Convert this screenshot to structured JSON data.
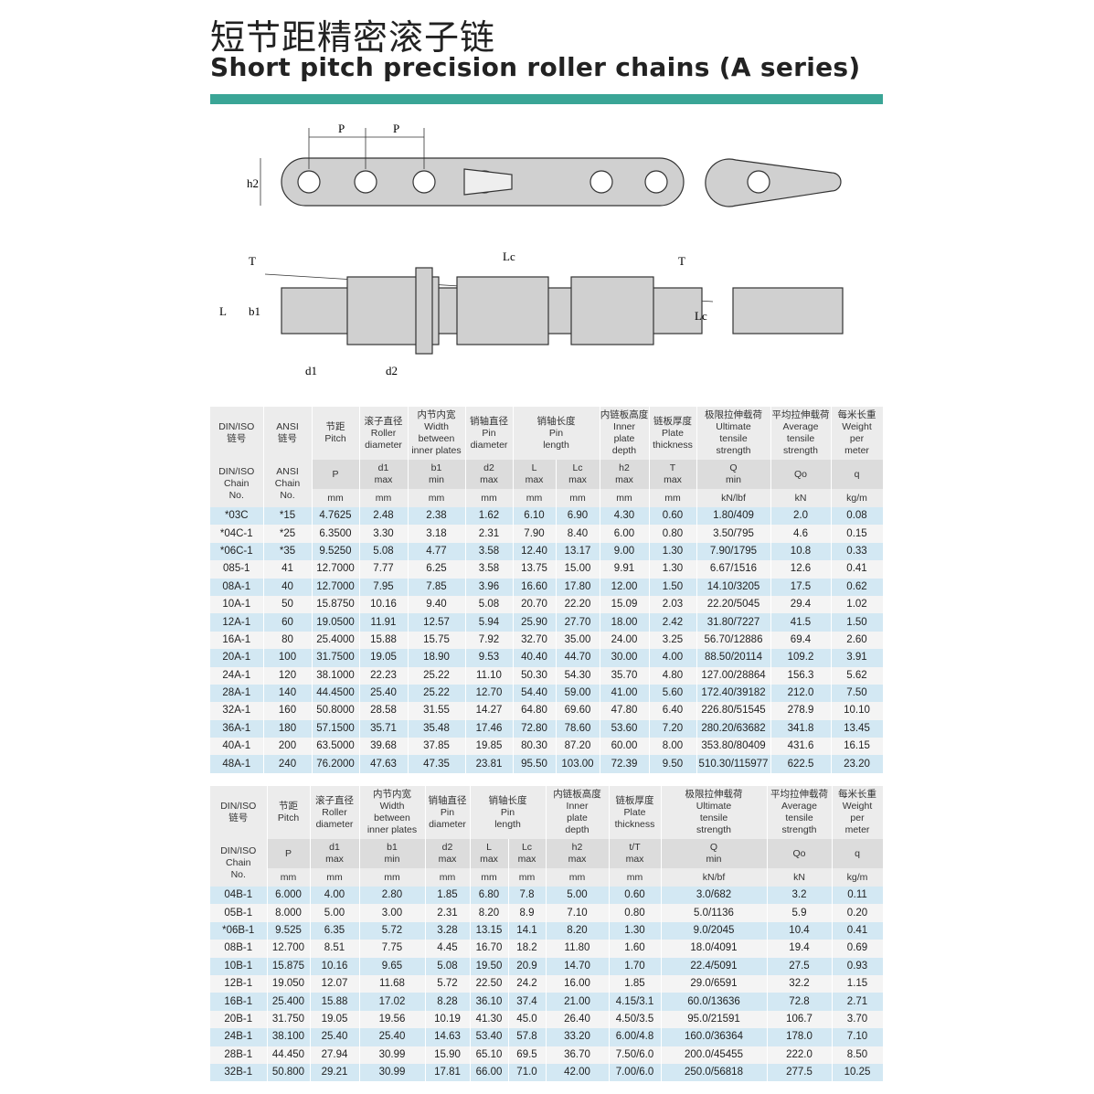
{
  "title_cn": "短节距精密滚子链",
  "title_en": "Short pitch precision roller chains (A series)",
  "accent_color": "#3aa596",
  "drawing_labels": {
    "p1": "P",
    "p2": "P",
    "h2": "h2",
    "T1": "T",
    "Lc1": "Lc",
    "L": "L",
    "b1": "b1",
    "d1": "d1",
    "d2": "d2",
    "T2": "T",
    "Lc2": "Lc"
  },
  "table1": {
    "head": [
      "DIN/ISO\n链号",
      "ANSI\n链号",
      "节距\nPitch",
      "滚子直径\nRoller\ndiameter",
      "内节内宽\nWidth\nbetween\ninner plates",
      "销轴直径\nPin\ndiameter",
      "销轴长度\nPin\nlength",
      "内链板高度\nInner\nplate\ndepth",
      "链板厚度\nPlate\nthickness",
      "极限拉伸载荷\nUltimate\ntensile\nstrength",
      "平均拉伸载荷\nAverage\ntensile\nstrength",
      "每米长重\nWeight\nper\nmeter"
    ],
    "chain_no": [
      "DIN/ISO\nChain\nNo.",
      "ANSI\nChain\nNo."
    ],
    "symbols": [
      "P",
      "d1\nmax",
      "b1\nmin",
      "d2\nmax",
      "L\nmax",
      "Lc\nmax",
      "h2\nmax",
      "T\nmax",
      "Q\nmin",
      "Qo",
      "q"
    ],
    "units": [
      "mm",
      "mm",
      "mm",
      "mm",
      "mm",
      "mm",
      "mm",
      "mm",
      "kN/lbf",
      "kN",
      "kg/m"
    ],
    "rows": [
      [
        "*03C",
        "*15",
        "4.7625",
        "2.48",
        "2.38",
        "1.62",
        "6.10",
        "6.90",
        "4.30",
        "0.60",
        "1.80/409",
        "2.0",
        "0.08"
      ],
      [
        "*04C-1",
        "*25",
        "6.3500",
        "3.30",
        "3.18",
        "2.31",
        "7.90",
        "8.40",
        "6.00",
        "0.80",
        "3.50/795",
        "4.6",
        "0.15"
      ],
      [
        "*06C-1",
        "*35",
        "9.5250",
        "5.08",
        "4.77",
        "3.58",
        "12.40",
        "13.17",
        "9.00",
        "1.30",
        "7.90/1795",
        "10.8",
        "0.33"
      ],
      [
        "085-1",
        "41",
        "12.7000",
        "7.77",
        "6.25",
        "3.58",
        "13.75",
        "15.00",
        "9.91",
        "1.30",
        "6.67/1516",
        "12.6",
        "0.41"
      ],
      [
        "08A-1",
        "40",
        "12.7000",
        "7.95",
        "7.85",
        "3.96",
        "16.60",
        "17.80",
        "12.00",
        "1.50",
        "14.10/3205",
        "17.5",
        "0.62"
      ],
      [
        "10A-1",
        "50",
        "15.8750",
        "10.16",
        "9.40",
        "5.08",
        "20.70",
        "22.20",
        "15.09",
        "2.03",
        "22.20/5045",
        "29.4",
        "1.02"
      ],
      [
        "12A-1",
        "60",
        "19.0500",
        "11.91",
        "12.57",
        "5.94",
        "25.90",
        "27.70",
        "18.00",
        "2.42",
        "31.80/7227",
        "41.5",
        "1.50"
      ],
      [
        "16A-1",
        "80",
        "25.4000",
        "15.88",
        "15.75",
        "7.92",
        "32.70",
        "35.00",
        "24.00",
        "3.25",
        "56.70/12886",
        "69.4",
        "2.60"
      ],
      [
        "20A-1",
        "100",
        "31.7500",
        "19.05",
        "18.90",
        "9.53",
        "40.40",
        "44.70",
        "30.00",
        "4.00",
        "88.50/20114",
        "109.2",
        "3.91"
      ],
      [
        "24A-1",
        "120",
        "38.1000",
        "22.23",
        "25.22",
        "11.10",
        "50.30",
        "54.30",
        "35.70",
        "4.80",
        "127.00/28864",
        "156.3",
        "5.62"
      ],
      [
        "28A-1",
        "140",
        "44.4500",
        "25.40",
        "25.22",
        "12.70",
        "54.40",
        "59.00",
        "41.00",
        "5.60",
        "172.40/39182",
        "212.0",
        "7.50"
      ],
      [
        "32A-1",
        "160",
        "50.8000",
        "28.58",
        "31.55",
        "14.27",
        "64.80",
        "69.60",
        "47.80",
        "6.40",
        "226.80/51545",
        "278.9",
        "10.10"
      ],
      [
        "36A-1",
        "180",
        "57.1500",
        "35.71",
        "35.48",
        "17.46",
        "72.80",
        "78.60",
        "53.60",
        "7.20",
        "280.20/63682",
        "341.8",
        "13.45"
      ],
      [
        "40A-1",
        "200",
        "63.5000",
        "39.68",
        "37.85",
        "19.85",
        "80.30",
        "87.20",
        "60.00",
        "8.00",
        "353.80/80409",
        "431.6",
        "16.15"
      ],
      [
        "48A-1",
        "240",
        "76.2000",
        "47.63",
        "47.35",
        "23.81",
        "95.50",
        "103.00",
        "72.39",
        "9.50",
        "510.30/115977",
        "622.5",
        "23.20"
      ]
    ]
  },
  "table2": {
    "head": [
      "DIN/ISO\n链号",
      "节距\nPitch",
      "滚子直径\nRoller\ndiameter",
      "内节内宽\nWidth\nbetween\ninner plates",
      "销轴直径\nPin\ndiameter",
      "销轴长度\nPin\nlength",
      "内链板高度\nInner\nplate\ndepth",
      "链板厚度\nPlate\nthickness",
      "极限拉伸载荷\nUltimate\ntensile\nstrength",
      "平均拉伸载荷\nAverage\ntensile\nstrength",
      "每米长重\nWeight\nper\nmeter"
    ],
    "chain_no": [
      "DIN/ISO\nChain\nNo."
    ],
    "symbols": [
      "P",
      "d1\nmax",
      "b1\nmin",
      "d2\nmax",
      "L\nmax",
      "Lc\nmax",
      "h2\nmax",
      "t/T\nmax",
      "Q\nmin",
      "Qo",
      "q"
    ],
    "units": [
      "mm",
      "mm",
      "mm",
      "mm",
      "mm",
      "mm",
      "mm",
      "mm",
      "kN/bf",
      "kN",
      "kg/m"
    ],
    "rows": [
      [
        "04B-1",
        "6.000",
        "4.00",
        "2.80",
        "1.85",
        "6.80",
        "7.8",
        "5.00",
        "0.60",
        "3.0/682",
        "3.2",
        "0.11"
      ],
      [
        "05B-1",
        "8.000",
        "5.00",
        "3.00",
        "2.31",
        "8.20",
        "8.9",
        "7.10",
        "0.80",
        "5.0/1136",
        "5.9",
        "0.20"
      ],
      [
        "*06B-1",
        "9.525",
        "6.35",
        "5.72",
        "3.28",
        "13.15",
        "14.1",
        "8.20",
        "1.30",
        "9.0/2045",
        "10.4",
        "0.41"
      ],
      [
        "08B-1",
        "12.700",
        "8.51",
        "7.75",
        "4.45",
        "16.70",
        "18.2",
        "11.80",
        "1.60",
        "18.0/4091",
        "19.4",
        "0.69"
      ],
      [
        "10B-1",
        "15.875",
        "10.16",
        "9.65",
        "5.08",
        "19.50",
        "20.9",
        "14.70",
        "1.70",
        "22.4/5091",
        "27.5",
        "0.93"
      ],
      [
        "12B-1",
        "19.050",
        "12.07",
        "11.68",
        "5.72",
        "22.50",
        "24.2",
        "16.00",
        "1.85",
        "29.0/6591",
        "32.2",
        "1.15"
      ],
      [
        "16B-1",
        "25.400",
        "15.88",
        "17.02",
        "8.28",
        "36.10",
        "37.4",
        "21.00",
        "4.15/3.1",
        "60.0/13636",
        "72.8",
        "2.71"
      ],
      [
        "20B-1",
        "31.750",
        "19.05",
        "19.56",
        "10.19",
        "41.30",
        "45.0",
        "26.40",
        "4.50/3.5",
        "95.0/21591",
        "106.7",
        "3.70"
      ],
      [
        "24B-1",
        "38.100",
        "25.40",
        "25.40",
        "14.63",
        "53.40",
        "57.8",
        "33.20",
        "6.00/4.8",
        "160.0/36364",
        "178.0",
        "7.10"
      ],
      [
        "28B-1",
        "44.450",
        "27.94",
        "30.99",
        "15.90",
        "65.10",
        "69.5",
        "36.70",
        "7.50/6.0",
        "200.0/45455",
        "222.0",
        "8.50"
      ],
      [
        "32B-1",
        "50.800",
        "29.21",
        "30.99",
        "17.81",
        "66.00",
        "71.0",
        "42.00",
        "7.00/6.0",
        "250.0/56818",
        "277.5",
        "10.25"
      ]
    ]
  }
}
